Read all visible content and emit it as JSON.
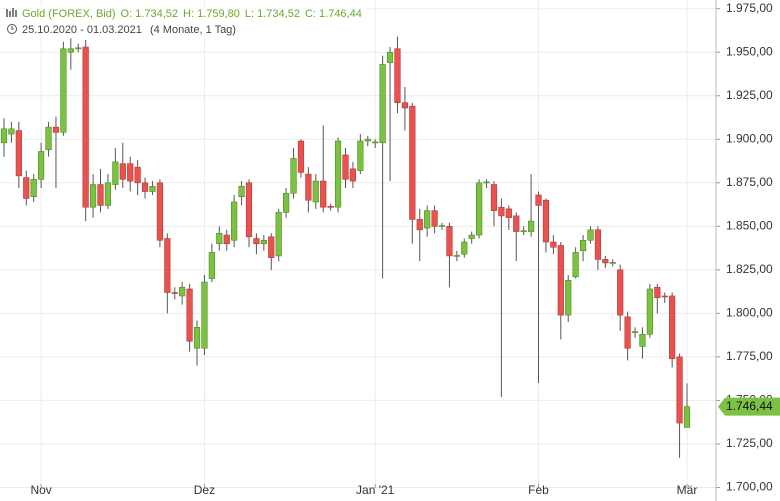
{
  "header": {
    "instrument": "Gold (FOREX, Bid)",
    "ohlc": [
      "O: 1.734,52",
      "H: 1.759,80",
      "L: 1.734,52",
      "C: 1.746,44"
    ],
    "range": "25.10.2020 - 01.03.2021",
    "period": "(4 Monate, 1 Tag)"
  },
  "chart_data": {
    "type": "candlestick",
    "categories": [
      null,
      null,
      null,
      null,
      null,
      "Nov",
      null,
      null,
      null,
      null,
      null,
      null,
      null,
      null,
      null,
      null,
      null,
      null,
      null,
      null,
      null,
      null,
      null,
      null,
      null,
      null,
      null,
      "Dez",
      null,
      null,
      null,
      null,
      null,
      null,
      null,
      null,
      null,
      null,
      null,
      null,
      null,
      null,
      null,
      null,
      null,
      null,
      null,
      null,
      null,
      null,
      "Jan '21",
      null,
      null,
      null,
      null,
      null,
      null,
      null,
      null,
      null,
      null,
      null,
      null,
      null,
      null,
      null,
      null,
      null,
      null,
      null,
      null,
      null,
      "Feb",
      null,
      null,
      null,
      null,
      null,
      null,
      null,
      null,
      null,
      null,
      null,
      null,
      null,
      null,
      null,
      null,
      null,
      null,
      null,
      "Mär"
    ],
    "open": [
      1898,
      1903,
      1905,
      1878,
      1867,
      1877,
      1894,
      1907,
      1904,
      1950,
      1952,
      1953,
      1861,
      1874,
      1862,
      1874,
      1886,
      1886,
      1884,
      1875,
      1870,
      1875,
      1843,
      1812,
      1810,
      1814,
      1780,
      1780,
      1820,
      1840,
      1845,
      1842,
      1867,
      1875,
      1843,
      1840,
      1844,
      1833,
      1858,
      1869,
      1899,
      1880,
      1864,
      1876,
      1861.5,
      1861,
      1891,
      1883,
      1882,
      1899,
      1898,
      1898,
      1944,
      1952,
      1921,
      1919,
      1854,
      1849,
      1859,
      1850,
      1850,
      1833,
      1834,
      1843,
      1845,
      1875,
      1874,
      1861,
      1860,
      1856,
      1847,
      1847,
      1868,
      1865,
      1841,
      1839,
      1799,
      1821,
      1836,
      1842,
      1848,
      1831,
      1829,
      1825,
      1798,
      1789,
      1781,
      1788,
      1815,
      1810,
      1810,
      1775,
      1734.52
    ],
    "high": [
      1912,
      1910,
      1910,
      1882,
      1880,
      1898,
      1910,
      1913,
      1956,
      1958,
      1955,
      1957,
      1880,
      1883,
      1880,
      1895,
      1898,
      1890,
      1888,
      1878,
      1876,
      1877,
      1846,
      1815,
      1818,
      1817,
      1796,
      1822,
      1840,
      1850,
      1848,
      1868,
      1876,
      1877,
      1846,
      1845,
      1846,
      1860,
      1872,
      1895,
      1900,
      1884,
      1880,
      1908,
      1863,
      1901,
      1895,
      1887,
      1903,
      1902,
      1900,
      1948,
      1953,
      1959,
      1930,
      1921,
      1860,
      1862,
      1862,
      1852,
      1852,
      1836,
      1843,
      1847,
      1877,
      1877,
      1876,
      1866,
      1862,
      1858,
      1850,
      1880,
      1870,
      1866,
      1845,
      1841,
      1822,
      1838,
      1845,
      1850,
      1850,
      1833,
      1831,
      1828,
      1801,
      1792,
      1792,
      1817,
      1817,
      1812,
      1812,
      1777,
      1759.8
    ],
    "low": [
      1890,
      1898,
      1872,
      1862,
      1864,
      1872,
      1890,
      1872,
      1902,
      1940,
      1950,
      1853,
      1855,
      1858,
      1860,
      1871,
      1872,
      1870,
      1868,
      1866,
      1868,
      1838,
      1800,
      1808,
      1805,
      1778,
      1770,
      1776,
      1818,
      1836,
      1836,
      1838,
      1862,
      1838,
      1834,
      1836,
      1825,
      1830,
      1855,
      1866,
      1878,
      1858,
      1860,
      1858,
      1859,
      1858,
      1872,
      1872,
      1880,
      1896,
      1895,
      1820,
      1876,
      1915,
      1905,
      1840,
      1830,
      1844,
      1846,
      1848,
      1815,
      1830,
      1832,
      1840,
      1843,
      1872,
      1850,
      1752,
      1848,
      1830,
      1845,
      1844,
      1760,
      1835,
      1834,
      1785,
      1795,
      1820,
      1830,
      1840,
      1825,
      1826,
      1827,
      1790,
      1773,
      1786,
      1774,
      1786,
      1800,
      1806,
      1769,
      1717,
      1734.52
    ],
    "close": [
      1906,
      1906,
      1879,
      1866,
      1877,
      1893,
      1907,
      1904,
      1952,
      1952,
      1952.5,
      1861,
      1874,
      1862,
      1875,
      1887,
      1877,
      1876,
      1875,
      1870,
      1873,
      1842,
      1812,
      1811.5,
      1815,
      1784,
      1792,
      1818,
      1835,
      1846,
      1840,
      1864,
      1873,
      1844,
      1840,
      1842,
      1832,
      1858,
      1869,
      1889,
      1881,
      1865,
      1876,
      1861,
      1861,
      1899,
      1877,
      1876,
      1899,
      1900,
      1898.5,
      1943,
      1950,
      1921,
      1918,
      1854,
      1848,
      1859,
      1850,
      1850.5,
      1833,
      1833.3,
      1841,
      1845,
      1875,
      1875.5,
      1859,
      1856,
      1855,
      1847,
      1847.5,
      1853,
      1862,
      1841,
      1838,
      1799,
      1819,
      1835,
      1842,
      1848,
      1831,
      1829,
      1829.3,
      1799,
      1780,
      1789.5,
      1788,
      1814,
      1809,
      1809.5,
      1774,
      1737,
      1746.44
    ],
    "up_color": "#7cc242",
    "down_color": "#e9524f",
    "ylim": [
      1702,
      1980
    ],
    "yticks": [
      {
        "value": 1700,
        "label": "1.700,00"
      },
      {
        "value": 1725,
        "label": "1.725,00"
      },
      {
        "value": 1750,
        "label": "1.750,00"
      },
      {
        "value": 1775,
        "label": "1.775,00"
      },
      {
        "value": 1800,
        "label": "1.800,00"
      },
      {
        "value": 1825,
        "label": "1.825,00"
      },
      {
        "value": 1850,
        "label": "1.850,00"
      },
      {
        "value": 1875,
        "label": "1.875,00"
      },
      {
        "value": 1900,
        "label": "1.900,00"
      },
      {
        "value": 1925,
        "label": "1.925,00"
      },
      {
        "value": 1950,
        "label": "1.950,00"
      },
      {
        "value": 1975,
        "label": "1.975,00"
      }
    ],
    "last_price": {
      "value": 1746.44,
      "label": "1.746,44"
    },
    "grid": true
  }
}
